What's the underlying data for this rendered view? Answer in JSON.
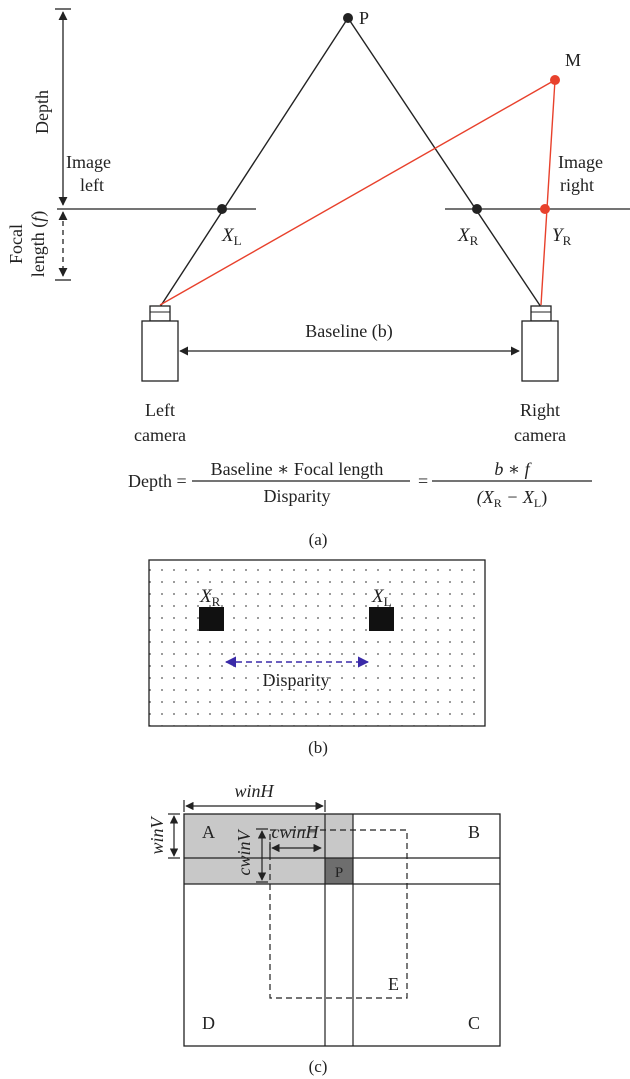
{
  "panel_a": {
    "point_p": "P",
    "point_m": "M",
    "depth_label": "Depth",
    "focal_label_line1": "Focal",
    "focal_label_line2": "length (",
    "focal_symbol": "f",
    "focal_close": ")",
    "image_left_line1": "Image",
    "image_left_line2": "left",
    "image_right_line1": "Image",
    "image_right_line2": "right",
    "xl": "X",
    "xl_sub": "L",
    "xr": "X",
    "xr_sub": "R",
    "yr": "Y",
    "yr_sub": "R",
    "baseline_label": "Baseline (b)",
    "left_camera_line1": "Left",
    "left_camera_line2": "camera",
    "right_camera_line1": "Right",
    "right_camera_line2": "camera",
    "formula_lhs": "Depth =",
    "formula_num1": "Baseline ∗ Focal length",
    "formula_den1": "Disparity",
    "formula_eq2": "=",
    "formula_num2": "b ∗ f",
    "formula_den2_open": "(X",
    "formula_den2_r": "R",
    "formula_den2_mid": " − X",
    "formula_den2_l": "L",
    "formula_den2_close": ")",
    "caption": "(a)"
  },
  "panel_b": {
    "xr": "X",
    "xr_sub": "R",
    "xl": "X",
    "xl_sub": "L",
    "disparity_label": "Disparity",
    "caption": "(b)"
  },
  "panel_c": {
    "win_h": "winH",
    "win_v": "winV",
    "cwin_h": "cwinH",
    "cwin_v": "cwinV",
    "label_a": "A",
    "label_b": "B",
    "label_c": "C",
    "label_d": "D",
    "label_e": "E",
    "label_p": "P",
    "caption": "(c)"
  },
  "colors": {
    "red": "#e8412c",
    "dark": "#222222",
    "blue": "#3a2aa8",
    "gray_region": "#c8c8c8",
    "dark_cell": "#6e6e6e"
  }
}
